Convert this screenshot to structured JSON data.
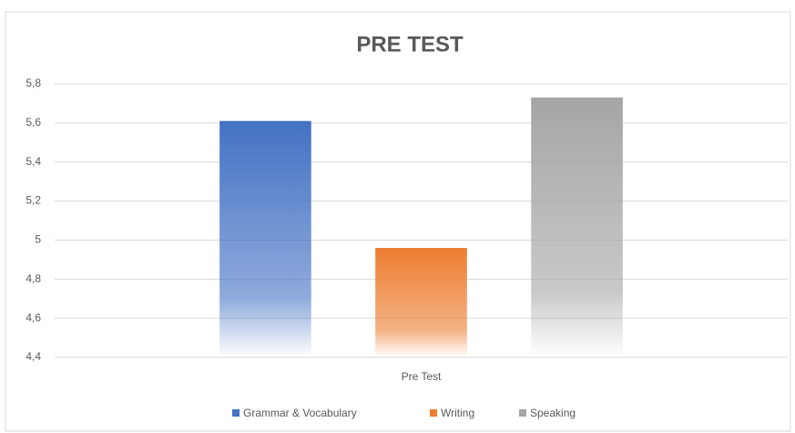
{
  "chart_data": {
    "type": "bar",
    "title": "PRE TEST",
    "categories": [
      "Pre Test"
    ],
    "series": [
      {
        "name": "Grammar & Vocabulary",
        "color": "#4472c4",
        "values": [
          5.61
        ]
      },
      {
        "name": "Writing",
        "color": "#ed7d31",
        "values": [
          4.96
        ]
      },
      {
        "name": "Speaking",
        "color": "#a5a5a5",
        "values": [
          5.73
        ]
      }
    ],
    "ylim": [
      4.4,
      5.8
    ],
    "yticks": [
      {
        "value": 4.4,
        "label": "4,4"
      },
      {
        "value": 4.6,
        "label": "4,6"
      },
      {
        "value": 4.8,
        "label": "4,8"
      },
      5,
      {
        "value": 5.2,
        "label": "5,2"
      },
      {
        "value": 5.4,
        "label": "5,4"
      },
      {
        "value": 5.6,
        "label": "5,6"
      },
      {
        "value": 5.8,
        "label": "5,8"
      }
    ],
    "grid": true,
    "legend": "bottom"
  }
}
